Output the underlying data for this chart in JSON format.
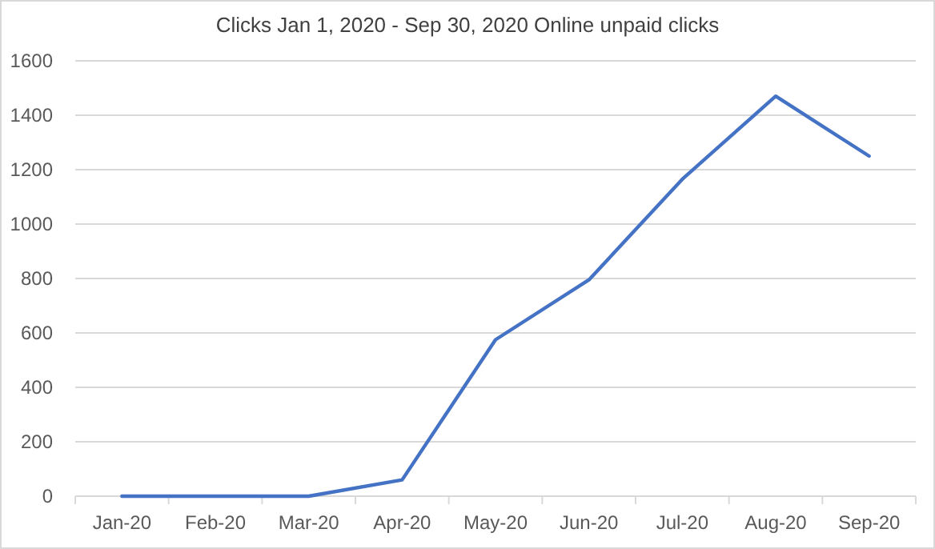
{
  "chart_data": {
    "type": "line",
    "title": "Clicks Jan 1, 2020 - Sep 30, 2020 Online unpaid clicks",
    "categories": [
      "Jan-20",
      "Feb-20",
      "Mar-20",
      "Apr-20",
      "May-20",
      "Jun-20",
      "Jul-20",
      "Aug-20",
      "Sep-20"
    ],
    "series": [
      {
        "color": "#4472c4",
        "values": [
          0,
          0,
          0,
          60,
          575,
          795,
          1165,
          1470,
          1250
        ]
      }
    ],
    "ylim": [
      0,
      1600
    ],
    "yticks": [
      0,
      200,
      400,
      600,
      800,
      1000,
      1200,
      1400,
      1600
    ],
    "grid": "y"
  }
}
